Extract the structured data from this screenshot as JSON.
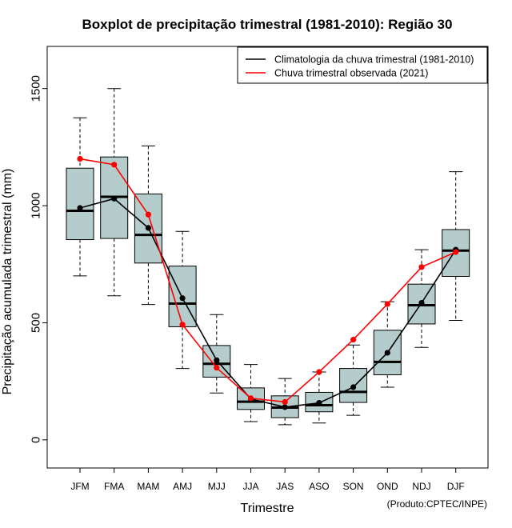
{
  "chart_data": {
    "type": "boxplot",
    "title": "Boxplot de precipitação trimestral (1981-2010): Região 30",
    "xlabel": "Trimestre",
    "ylabel": "Precipitação acumulada trimestral (mm)",
    "credit": "(Produto:CPTEC/INPE)",
    "ylim": [
      -120,
      1680
    ],
    "yticks": [
      "0",
      "500",
      "1000",
      "1500"
    ],
    "ytick_values": [
      0,
      500,
      1000,
      1500
    ],
    "categories": [
      "JFM",
      "FMA",
      "MAM",
      "AMJ",
      "MJJ",
      "JJA",
      "JAS",
      "ASO",
      "SON",
      "OND",
      "NDJ",
      "DJF"
    ],
    "boxes": [
      {
        "whisker_low": 700,
        "q1": 855,
        "median": 978,
        "q3": 1160,
        "whisker_high": 1375
      },
      {
        "whisker_low": 615,
        "q1": 860,
        "median": 1038,
        "q3": 1208,
        "whisker_high": 1500
      },
      {
        "whisker_low": 578,
        "q1": 755,
        "median": 875,
        "q3": 1050,
        "whisker_high": 1255
      },
      {
        "whisker_low": 305,
        "q1": 483,
        "median": 582,
        "q3": 742,
        "whisker_high": 890
      },
      {
        "whisker_low": 200,
        "q1": 268,
        "median": 325,
        "q3": 403,
        "whisker_high": 535
      },
      {
        "whisker_low": 78,
        "q1": 130,
        "median": 163,
        "q3": 222,
        "whisker_high": 322
      },
      {
        "whisker_low": 65,
        "q1": 95,
        "median": 138,
        "q3": 188,
        "whisker_high": 262
      },
      {
        "whisker_low": 72,
        "q1": 120,
        "median": 148,
        "q3": 203,
        "whisker_high": 290
      },
      {
        "whisker_low": 105,
        "q1": 160,
        "median": 205,
        "q3": 305,
        "whisker_high": 405
      },
      {
        "whisker_low": 225,
        "q1": 278,
        "median": 333,
        "q3": 468,
        "whisker_high": 590
      },
      {
        "whisker_low": 395,
        "q1": 495,
        "median": 575,
        "q3": 665,
        "whisker_high": 812
      },
      {
        "whisker_low": 510,
        "q1": 698,
        "median": 808,
        "q3": 898,
        "whisker_high": 1145
      }
    ],
    "series": [
      {
        "name": "Climatologia da chuva trimestral (1981-2010)",
        "color": "#000000",
        "values": [
          990,
          1030,
          905,
          605,
          340,
          175,
          140,
          158,
          225,
          372,
          585,
          812
        ]
      },
      {
        "name": "Chuva trimestral observada (2021)",
        "color": "#ff0000",
        "values": [
          1200,
          1175,
          962,
          492,
          308,
          178,
          162,
          290,
          428,
          580,
          738,
          802
        ]
      }
    ],
    "box_fill": "#b4cccc",
    "legend_position": "top-right"
  }
}
